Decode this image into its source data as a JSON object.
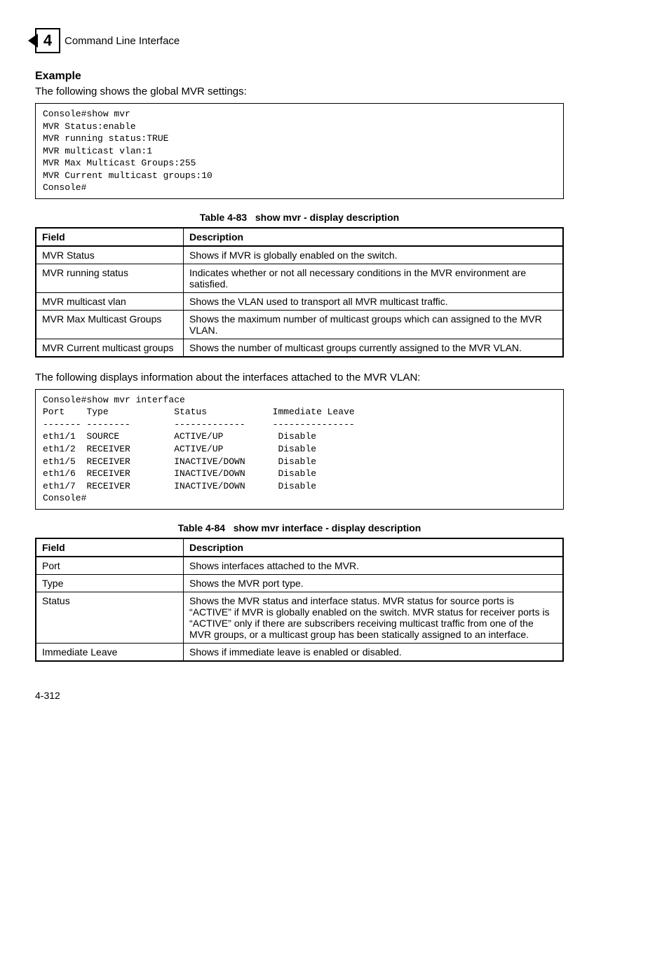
{
  "header": {
    "chapter_number": "4",
    "title": "Command Line Interface"
  },
  "example": {
    "heading": "Example",
    "intro1": "The following shows the global MVR settings:",
    "console1": "Console#show mvr\nMVR Status:enable\nMVR running status:TRUE\nMVR multicast vlan:1\nMVR Max Multicast Groups:255\nMVR Current multicast groups:10\nConsole#",
    "intro2": "The following displays information about the interfaces attached to the MVR VLAN:",
    "console2": "Console#show mvr interface\nPort    Type            Status            Immediate Leave\n------- --------        -------------     ---------------\neth1/1  SOURCE          ACTIVE/UP          Disable\neth1/2  RECEIVER        ACTIVE/UP          Disable\neth1/5  RECEIVER        INACTIVE/DOWN      Disable\neth1/6  RECEIVER        INACTIVE/DOWN      Disable\neth1/7  RECEIVER        INACTIVE/DOWN      Disable\nConsole#"
  },
  "table83": {
    "caption_label": "Table 4-83",
    "caption_title": "show mvr - display description",
    "headers": [
      "Field",
      "Description"
    ],
    "rows": [
      [
        "MVR Status",
        "Shows if MVR is globally enabled on the switch."
      ],
      [
        "MVR running status",
        "Indicates whether or not all necessary conditions in the MVR environment are satisfied."
      ],
      [
        "MVR multicast vlan",
        "Shows the VLAN used to transport all MVR multicast traffic."
      ],
      [
        "MVR Max Multicast Groups",
        "Shows the maximum number of multicast groups which can assigned to the MVR VLAN."
      ],
      [
        "MVR Current multicast groups",
        "Shows the number of multicast groups currently assigned to the MVR VLAN."
      ]
    ]
  },
  "table84": {
    "caption_label": "Table 4-84",
    "caption_title": "show mvr interface - display description",
    "headers": [
      "Field",
      "Description"
    ],
    "rows": [
      [
        "Port",
        "Shows interfaces attached to the MVR."
      ],
      [
        "Type",
        "Shows the MVR port type."
      ],
      [
        "Status",
        "Shows the MVR status and interface status. MVR status for source ports is “ACTIVE” if MVR is globally enabled on the switch. MVR status for receiver ports is “ACTIVE” only if there are subscribers receiving multicast traffic from one of the MVR groups, or a multicast group has been statically assigned to an interface."
      ],
      [
        "Immediate Leave",
        "Shows if immediate leave is enabled or disabled."
      ]
    ]
  },
  "footer": {
    "page_num": "4-312"
  }
}
